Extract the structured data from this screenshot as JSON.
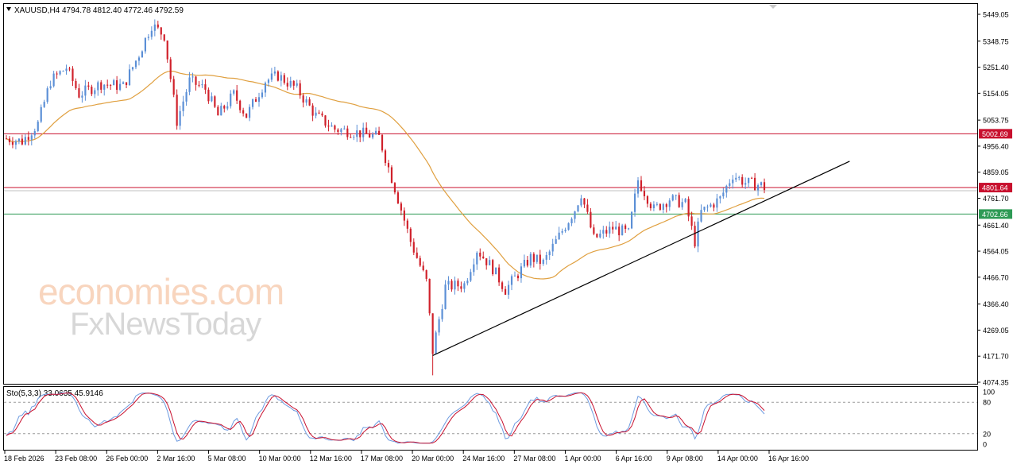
{
  "header": {
    "symbol_tf": "XAUUSD,H4",
    "ohlc": "4794.78 4812.40 4772.46 4792.59"
  },
  "watermark": {
    "line1": "economies.com",
    "line2": "FxNewsToday"
  },
  "stoch": {
    "label": "Sto(5,3,3) 33.0635 45.9146",
    "levels": [
      100,
      80,
      20,
      0
    ]
  },
  "colors": {
    "bull": "#5b8fd6",
    "bear": "#d0202a",
    "ma": "#e0a040",
    "resistance": "#c8102e",
    "support": "#2e9a55",
    "trendline": "#000000",
    "stoch_main": "#6d9be0",
    "stoch_signal": "#c8102e"
  },
  "chart_data": {
    "type": "candlestick",
    "symbol": "XAUUSD",
    "timeframe": "H4",
    "ylim": [
      4074.35,
      5449.05
    ],
    "y_ticks": [
      "5449.05",
      "5348.75",
      "5251.40",
      "5154.05",
      "5053.75",
      "4956.40",
      "4859.05",
      "4761.70",
      "4661.40",
      "4564.05",
      "4466.70",
      "4366.40",
      "4269.05",
      "4171.70",
      "4074.35"
    ],
    "x_ticks": [
      "18 Feb 2026",
      "23 Feb 08:00",
      "26 Feb 00:00",
      "2 Mar 16:00",
      "5 Mar 08:00",
      "10 Mar 00:00",
      "12 Mar 16:00",
      "17 Mar 08:00",
      "20 Mar 00:00",
      "24 Mar 16:00",
      "27 Mar 08:00",
      "1 Apr 00:00",
      "6 Apr 16:00",
      "9 Apr 08:00",
      "14 Apr 00:00",
      "16 Apr 16:00"
    ],
    "horizontal_levels": [
      {
        "value": 5002.69,
        "label": "5002.69",
        "color": "#c8102e"
      },
      {
        "value": 4801.64,
        "label": "4801.64",
        "color": "#c8102e"
      },
      {
        "value": 4702.66,
        "label": "4702.66",
        "color": "#2e9a55"
      }
    ],
    "trendline": {
      "from_bar": 135,
      "from_price": 4174,
      "to_bar": 267,
      "to_price": 4900
    },
    "anchors": [
      {
        "bar": 0,
        "price": 4985
      },
      {
        "bar": 5,
        "price": 4975
      },
      {
        "bar": 10,
        "price": 5040
      },
      {
        "bar": 14,
        "price": 5200
      },
      {
        "bar": 19,
        "price": 5250
      },
      {
        "bar": 23,
        "price": 5150
      },
      {
        "bar": 30,
        "price": 5190
      },
      {
        "bar": 37,
        "price": 5180
      },
      {
        "bar": 42,
        "price": 5300
      },
      {
        "bar": 46,
        "price": 5410
      },
      {
        "bar": 50,
        "price": 5370
      },
      {
        "bar": 54,
        "price": 5050
      },
      {
        "bar": 58,
        "price": 5200
      },
      {
        "bar": 63,
        "price": 5170
      },
      {
        "bar": 67,
        "price": 5070
      },
      {
        "bar": 72,
        "price": 5150
      },
      {
        "bar": 76,
        "price": 5070
      },
      {
        "bar": 82,
        "price": 5200
      },
      {
        "bar": 86,
        "price": 5220
      },
      {
        "bar": 92,
        "price": 5170
      },
      {
        "bar": 98,
        "price": 5070
      },
      {
        "bar": 104,
        "price": 5020
      },
      {
        "bar": 110,
        "price": 5010
      },
      {
        "bar": 118,
        "price": 4990
      },
      {
        "bar": 123,
        "price": 4800
      },
      {
        "bar": 128,
        "price": 4600
      },
      {
        "bar": 133,
        "price": 4450
      },
      {
        "bar": 135,
        "price": 4190
      },
      {
        "bar": 139,
        "price": 4430
      },
      {
        "bar": 145,
        "price": 4440
      },
      {
        "bar": 149,
        "price": 4570
      },
      {
        "bar": 154,
        "price": 4500
      },
      {
        "bar": 158,
        "price": 4420
      },
      {
        "bar": 162,
        "price": 4480
      },
      {
        "bar": 166,
        "price": 4540
      },
      {
        "bar": 170,
        "price": 4520
      },
      {
        "bar": 175,
        "price": 4620
      },
      {
        "bar": 180,
        "price": 4720
      },
      {
        "bar": 182,
        "price": 4780
      },
      {
        "bar": 186,
        "price": 4610
      },
      {
        "bar": 192,
        "price": 4650
      },
      {
        "bar": 197,
        "price": 4630
      },
      {
        "bar": 200,
        "price": 4830
      },
      {
        "bar": 205,
        "price": 4720
      },
      {
        "bar": 210,
        "price": 4760
      },
      {
        "bar": 215,
        "price": 4740
      },
      {
        "bar": 218,
        "price": 4600
      },
      {
        "bar": 220,
        "price": 4710
      },
      {
        "bar": 226,
        "price": 4760
      },
      {
        "bar": 230,
        "price": 4850
      },
      {
        "bar": 234,
        "price": 4820
      },
      {
        "bar": 239,
        "price": 4810
      },
      {
        "bar": 240,
        "price": 4792.59
      }
    ],
    "series": [
      {
        "name": "Sto(5,3,3)",
        "values_current": [
          33.0635,
          45.9146
        ]
      }
    ]
  }
}
